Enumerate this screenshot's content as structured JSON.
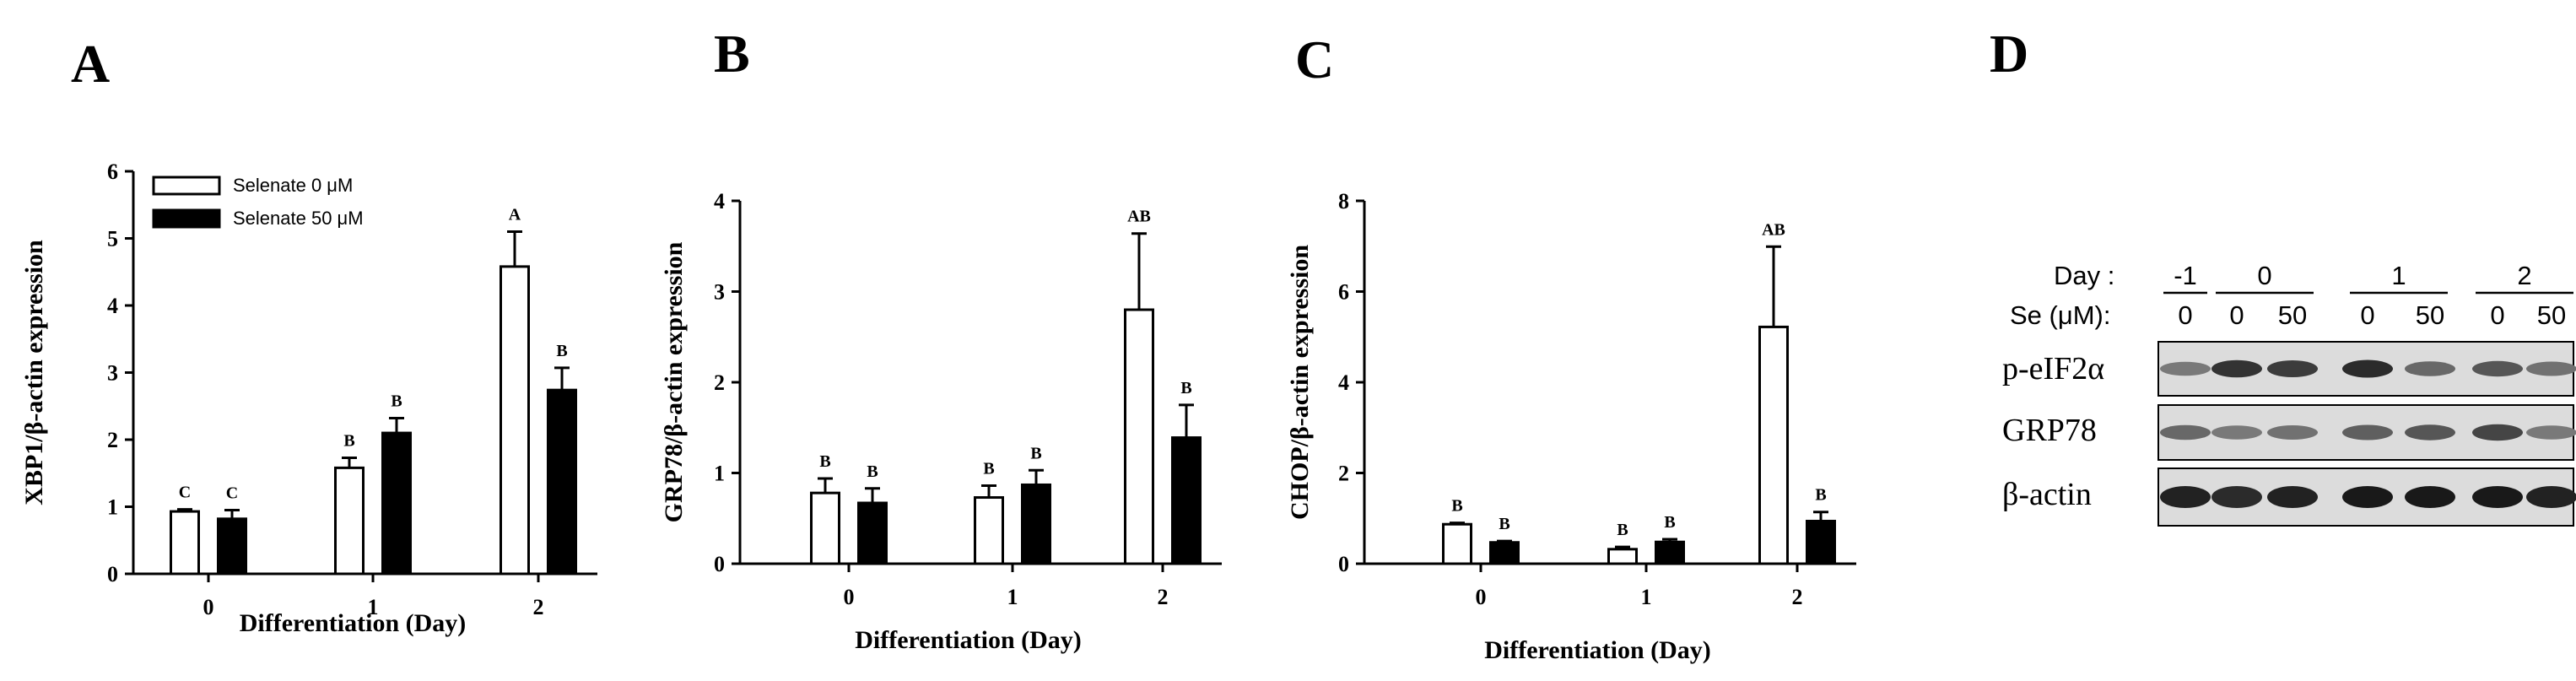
{
  "panel_letters": [
    "A",
    "B",
    "C",
    "D"
  ],
  "legend": {
    "series0": "Selenate  0 μM",
    "series1": "Selenate 50 μM"
  },
  "chart_data": [
    {
      "panel": "A",
      "type": "bar",
      "title": "",
      "xlabel": "Differentiation (Day)",
      "ylabel": "XBP1/β-actin expression",
      "categories": [
        "0",
        "1",
        "2"
      ],
      "yticks": [
        "0",
        "1",
        "2",
        "3",
        "4",
        "5",
        "6"
      ],
      "ylim": [
        0,
        6
      ],
      "series": [
        {
          "name": "Selenate  0 μM",
          "values": [
            0.93,
            1.58,
            4.58
          ],
          "errors": [
            0.03,
            0.15,
            0.52
          ],
          "labels": [
            "C",
            "B",
            "A"
          ],
          "color": "#ffffff"
        },
        {
          "name": "Selenate 50 μM",
          "values": [
            0.82,
            2.1,
            2.74
          ],
          "errors": [
            0.13,
            0.22,
            0.33
          ],
          "labels": [
            "C",
            "B",
            "B"
          ],
          "color": "#000000"
        }
      ]
    },
    {
      "panel": "B",
      "type": "bar",
      "title": "",
      "xlabel": "Differentiation (Day)",
      "ylabel": "GRP78/β-actin expression",
      "categories": [
        "0",
        "1",
        "2"
      ],
      "yticks": [
        "0",
        "1",
        "2",
        "3",
        "4"
      ],
      "ylim": [
        0,
        4
      ],
      "series": [
        {
          "name": "Selenate  0 μM",
          "values": [
            0.78,
            0.73,
            2.8
          ],
          "errors": [
            0.16,
            0.13,
            0.84
          ],
          "labels": [
            "B",
            "B",
            "AB"
          ],
          "color": "#ffffff"
        },
        {
          "name": "Selenate 50 μM",
          "values": [
            0.67,
            0.87,
            1.39
          ],
          "errors": [
            0.16,
            0.16,
            0.36
          ],
          "labels": [
            "B",
            "B",
            "B"
          ],
          "color": "#000000"
        }
      ]
    },
    {
      "panel": "C",
      "type": "bar",
      "title": "",
      "xlabel": "Differentiation (Day)",
      "ylabel": "CHOP/β-actin expression",
      "categories": [
        "0",
        "1",
        "2"
      ],
      "yticks": [
        "0",
        "2",
        "4",
        "6",
        "8"
      ],
      "ylim": [
        0,
        8
      ],
      "series": [
        {
          "name": "Selenate  0 μM",
          "values": [
            0.87,
            0.32,
            5.22
          ],
          "errors": [
            0.03,
            0.05,
            1.77
          ],
          "labels": [
            "B",
            "B",
            "AB"
          ],
          "color": "#ffffff"
        },
        {
          "name": "Selenate 50 μM",
          "values": [
            0.47,
            0.48,
            0.94
          ],
          "errors": [
            0.03,
            0.06,
            0.2
          ],
          "labels": [
            "B",
            "B",
            "B"
          ],
          "color": "#000000"
        }
      ]
    }
  ],
  "blot": {
    "day_label": "Day :",
    "se_label": "Se (μM):",
    "days": [
      "-1",
      "0",
      "1",
      "2"
    ],
    "se_values": [
      "0",
      "0",
      "50",
      "0",
      "50",
      "0",
      "50"
    ],
    "rows": [
      {
        "name": "p-eIF2α",
        "intensities": [
          0.45,
          0.85,
          0.8,
          0.9,
          0.55,
          0.65,
          0.5
        ]
      },
      {
        "name": "GRP78",
        "intensities": [
          0.55,
          0.45,
          0.5,
          0.6,
          0.65,
          0.75,
          0.45
        ]
      },
      {
        "name": "β-actin",
        "intensities": [
          0.95,
          0.9,
          0.95,
          1.0,
          1.0,
          1.0,
          0.95
        ]
      }
    ]
  }
}
